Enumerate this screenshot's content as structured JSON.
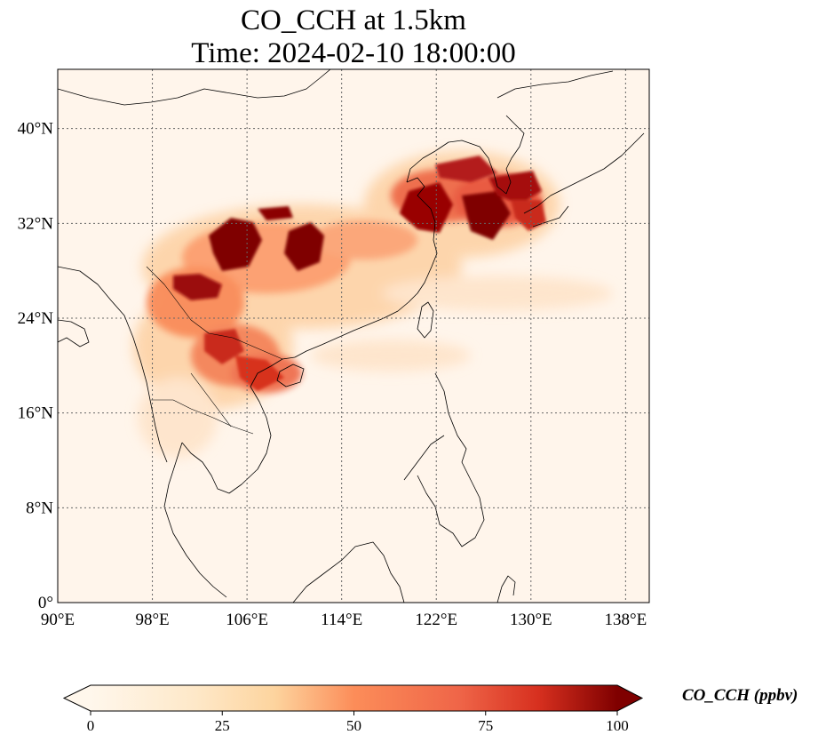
{
  "title": {
    "line1": "CO_CCH at 1.5km",
    "line2": "Time: 2024-02-10 18:00:00"
  },
  "map": {
    "extent": {
      "lon_min": 90,
      "lon_max": 140,
      "lat_min": 0,
      "lat_max": 45
    },
    "lon_ticks": [
      {
        "value": 90,
        "label": "90°E"
      },
      {
        "value": 98,
        "label": "98°E"
      },
      {
        "value": 106,
        "label": "106°E"
      },
      {
        "value": 114,
        "label": "114°E"
      },
      {
        "value": 122,
        "label": "122°E"
      },
      {
        "value": 130,
        "label": "130°E"
      },
      {
        "value": 138,
        "label": "138°E"
      }
    ],
    "lat_ticks": [
      {
        "value": 0,
        "label": "0°"
      },
      {
        "value": 8,
        "label": "8°N"
      },
      {
        "value": 16,
        "label": "16°N"
      },
      {
        "value": 24,
        "label": "24°N"
      },
      {
        "value": 32,
        "label": "32°N"
      },
      {
        "value": 40,
        "label": "40°N"
      }
    ],
    "gridlines": true,
    "background_color": "#fff5eb"
  },
  "colorbar": {
    "label": "CO_CCH (ppbv)",
    "colormap": "OrRd",
    "vmin": 0,
    "vmax": 100,
    "extend": "both",
    "ticks": [
      {
        "value": 0,
        "label": "0"
      },
      {
        "value": 25,
        "label": "25"
      },
      {
        "value": 50,
        "label": "50"
      },
      {
        "value": 75,
        "label": "75"
      },
      {
        "value": 100,
        "label": "100"
      }
    ]
  }
}
